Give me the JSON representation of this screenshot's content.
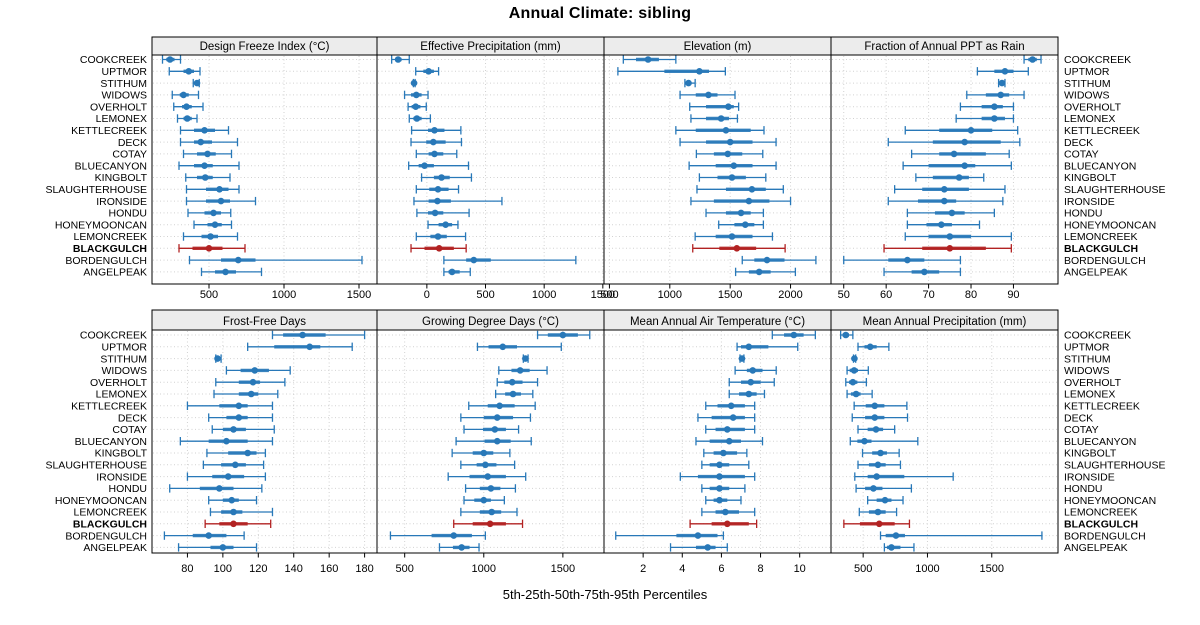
{
  "title": "Annual Climate: sibling",
  "axis_label": "5th-25th-50th-75th-95th Percentiles",
  "colors": {
    "series": "#2878B8",
    "highlight": "#B22222",
    "grid": "#D2D2D2",
    "strip_bg": "#ECECEC",
    "border": "#000000",
    "text": "#000000"
  },
  "sites": [
    "COOKCREEK",
    "UPTMOR",
    "STITHUM",
    "WIDOWS",
    "OVERHOLT",
    "LEMONEX",
    "KETTLECREEK",
    "DECK",
    "COTAY",
    "BLUECANYON",
    "KINGBOLT",
    "SLAUGHTERHOUSE",
    "IRONSIDE",
    "HONDU",
    "HONEYMOONCAN",
    "LEMONCREEK",
    "BLACKGULCH",
    "BORDENGULCH",
    "ANGELPEAK"
  ],
  "highlight_site": "BLACKGULCH",
  "chart_data": {
    "type": "percentile-dotplot",
    "percentiles": [
      "5th",
      "25th",
      "50th",
      "75th",
      "95th"
    ],
    "legend_position": "none",
    "grid": "dotted",
    "panels": [
      {
        "title": "Design Freeze Index (°C)",
        "row": 0,
        "col": 0,
        "xlim": [
          120,
          1620
        ],
        "ticks": [
          500,
          1000,
          1500
        ],
        "values": [
          [
            190,
            215,
            240,
            270,
            310
          ],
          [
            235,
            330,
            365,
            400,
            440
          ],
          [
            395,
            410,
            420,
            428,
            435
          ],
          [
            255,
            305,
            330,
            365,
            430
          ],
          [
            265,
            320,
            350,
            385,
            460
          ],
          [
            290,
            330,
            355,
            385,
            420
          ],
          [
            310,
            400,
            470,
            540,
            630
          ],
          [
            310,
            400,
            445,
            520,
            690
          ],
          [
            330,
            420,
            490,
            545,
            650
          ],
          [
            300,
            400,
            470,
            525,
            700
          ],
          [
            345,
            420,
            475,
            525,
            640
          ],
          [
            350,
            480,
            570,
            630,
            700
          ],
          [
            350,
            480,
            580,
            640,
            810
          ],
          [
            360,
            470,
            530,
            580,
            645
          ],
          [
            400,
            490,
            540,
            585,
            650
          ],
          [
            330,
            450,
            510,
            560,
            690
          ],
          [
            300,
            390,
            500,
            590,
            740
          ],
          [
            370,
            580,
            695,
            810,
            1520
          ],
          [
            450,
            540,
            610,
            680,
            850
          ]
        ]
      },
      {
        "title": "Effective Precipitation (mm)",
        "row": 0,
        "col": 1,
        "xlim": [
          -425,
          1510
        ],
        "ticks": [
          0,
          500,
          1000,
          1500
        ],
        "values": [
          [
            -300,
            -270,
            -245,
            -215,
            -150
          ],
          [
            -95,
            -30,
            15,
            60,
            100
          ],
          [
            -115,
            -112,
            -109,
            -106,
            -100
          ],
          [
            -190,
            -135,
            -90,
            -45,
            10
          ],
          [
            -160,
            -130,
            -95,
            -55,
            -5
          ],
          [
            -150,
            -115,
            -85,
            -45,
            30
          ],
          [
            -130,
            10,
            65,
            150,
            290
          ],
          [
            -135,
            -5,
            55,
            160,
            295
          ],
          [
            -90,
            15,
            65,
            140,
            255
          ],
          [
            -155,
            -70,
            -20,
            60,
            355
          ],
          [
            -45,
            60,
            125,
            195,
            380
          ],
          [
            -90,
            20,
            95,
            185,
            270
          ],
          [
            -110,
            15,
            90,
            205,
            640
          ],
          [
            -85,
            10,
            70,
            140,
            360
          ],
          [
            10,
            100,
            160,
            215,
            265
          ],
          [
            -90,
            30,
            95,
            170,
            330
          ],
          [
            -135,
            -20,
            105,
            230,
            335
          ],
          [
            145,
            335,
            400,
            545,
            1270
          ],
          [
            145,
            185,
            215,
            280,
            370
          ]
        ]
      },
      {
        "title": "Elevation (m)",
        "row": 0,
        "col": 2,
        "xlim": [
          455,
          2335
        ],
        "ticks": [
          500,
          1000,
          1500,
          2000
        ],
        "values": [
          [
            615,
            720,
            820,
            910,
            1050
          ],
          [
            570,
            955,
            1245,
            1325,
            1460
          ],
          [
            1125,
            1145,
            1155,
            1175,
            1210
          ],
          [
            1085,
            1215,
            1320,
            1395,
            1540
          ],
          [
            1165,
            1300,
            1485,
            1530,
            1570
          ],
          [
            1175,
            1300,
            1425,
            1490,
            1560
          ],
          [
            1050,
            1215,
            1465,
            1670,
            1780
          ],
          [
            1085,
            1300,
            1500,
            1685,
            1880
          ],
          [
            1220,
            1365,
            1480,
            1600,
            1770
          ],
          [
            1160,
            1380,
            1530,
            1685,
            1880
          ],
          [
            1245,
            1395,
            1515,
            1630,
            1795
          ],
          [
            1225,
            1465,
            1680,
            1795,
            1940
          ],
          [
            1175,
            1365,
            1655,
            1825,
            2000
          ],
          [
            1300,
            1465,
            1590,
            1670,
            1775
          ],
          [
            1405,
            1535,
            1625,
            1700,
            1775
          ],
          [
            1210,
            1380,
            1515,
            1685,
            1850
          ],
          [
            1190,
            1410,
            1555,
            1715,
            1955
          ],
          [
            1600,
            1700,
            1805,
            1950,
            2210
          ],
          [
            1545,
            1655,
            1740,
            1835,
            2040
          ]
        ]
      },
      {
        "title": "Fraction of Annual PPT as Rain",
        "row": 0,
        "col": 3,
        "xlim": [
          47,
          100.5
        ],
        "ticks": [
          50,
          60,
          70,
          80,
          90
        ],
        "values": [
          [
            92.5,
            93.5,
            94.5,
            95.5,
            96.5
          ],
          [
            81.5,
            85.5,
            88,
            90,
            93.5
          ],
          [
            86.5,
            87,
            87.3,
            87.7,
            88
          ],
          [
            79,
            83.5,
            87,
            89,
            92.5
          ],
          [
            77.5,
            82.5,
            85.5,
            87.5,
            90
          ],
          [
            76.5,
            82.5,
            85.5,
            88,
            90
          ],
          [
            64.5,
            72.5,
            80,
            85,
            91
          ],
          [
            60.5,
            71,
            78.5,
            87,
            91.5
          ],
          [
            66,
            72.5,
            76,
            83.5,
            89
          ],
          [
            64,
            70,
            78.5,
            81,
            89.5
          ],
          [
            67,
            71,
            77.2,
            79.5,
            83
          ],
          [
            62,
            68.5,
            73.7,
            79.5,
            88
          ],
          [
            60.5,
            67.5,
            73.7,
            76.5,
            87.5
          ],
          [
            65,
            71.5,
            75.5,
            78.5,
            85.5
          ],
          [
            65,
            69.5,
            73,
            75.5,
            82
          ],
          [
            64.5,
            70,
            75,
            80,
            89.5
          ],
          [
            59.5,
            68.5,
            75,
            83.5,
            89.5
          ],
          [
            50,
            60.5,
            65,
            69,
            77.5
          ],
          [
            59.5,
            66,
            69,
            72.5,
            77.5
          ]
        ]
      },
      {
        "title": "Frost-Free Days",
        "row": 1,
        "col": 0,
        "xlim": [
          60,
          187
        ],
        "ticks": [
          80,
          100,
          120,
          140,
          160,
          180
        ],
        "values": [
          [
            128,
            134,
            145,
            158,
            180
          ],
          [
            114,
            129,
            149,
            155,
            173
          ],
          [
            96,
            96.5,
            97,
            98,
            99
          ],
          [
            102,
            110,
            118,
            126,
            138
          ],
          [
            96,
            109,
            117,
            121,
            135
          ],
          [
            95,
            109,
            116,
            120,
            131
          ],
          [
            80,
            98,
            109,
            114,
            128
          ],
          [
            92,
            102,
            109,
            114,
            128
          ],
          [
            94,
            100,
            106,
            113,
            129
          ],
          [
            76,
            92,
            102,
            114,
            128
          ],
          [
            91,
            103,
            114,
            119,
            124
          ],
          [
            89,
            99,
            107,
            113,
            123
          ],
          [
            80,
            94,
            103,
            112,
            124
          ],
          [
            70,
            87,
            98,
            106,
            122
          ],
          [
            92,
            100,
            105,
            109,
            119
          ],
          [
            93,
            99,
            106,
            111,
            128
          ],
          [
            90,
            98,
            106,
            114,
            127
          ],
          [
            67,
            83,
            92,
            102,
            112
          ],
          [
            75,
            93,
            100,
            106,
            119
          ]
        ]
      },
      {
        "title": "Growing Degree Days (°C)",
        "row": 1,
        "col": 1,
        "xlim": [
          325,
          1760
        ],
        "ticks": [
          500,
          1000,
          1500
        ],
        "values": [
          [
            1340,
            1405,
            1500,
            1595,
            1670
          ],
          [
            960,
            1030,
            1120,
            1210,
            1490
          ],
          [
            1250,
            1258,
            1263,
            1270,
            1280
          ],
          [
            1095,
            1175,
            1230,
            1290,
            1400
          ],
          [
            1085,
            1130,
            1180,
            1245,
            1340
          ],
          [
            1075,
            1135,
            1185,
            1235,
            1310
          ],
          [
            905,
            1025,
            1100,
            1195,
            1325
          ],
          [
            855,
            1000,
            1085,
            1185,
            1295
          ],
          [
            875,
            995,
            1070,
            1140,
            1220
          ],
          [
            825,
            1005,
            1085,
            1170,
            1300
          ],
          [
            800,
            930,
            1000,
            1060,
            1165
          ],
          [
            855,
            955,
            1010,
            1080,
            1195
          ],
          [
            775,
            910,
            1025,
            1140,
            1265
          ],
          [
            885,
            975,
            1045,
            1105,
            1200
          ],
          [
            875,
            940,
            1000,
            1045,
            1130
          ],
          [
            855,
            975,
            1050,
            1110,
            1210
          ],
          [
            810,
            930,
            1040,
            1140,
            1245
          ],
          [
            410,
            670,
            810,
            925,
            1010
          ],
          [
            720,
            805,
            860,
            910,
            970
          ]
        ]
      },
      {
        "title": "Mean Annual Air Temperature (°C)",
        "row": 1,
        "col": 2,
        "xlim": [
          0,
          11.6
        ],
        "ticks": [
          2,
          4,
          6,
          8,
          10
        ],
        "values": [
          [
            8.6,
            9.2,
            9.7,
            10.2,
            10.8
          ],
          [
            6.8,
            7.0,
            7.4,
            8.4,
            9.9
          ],
          [
            6.95,
            7.0,
            7.05,
            7.1,
            7.15
          ],
          [
            6.7,
            7.3,
            7.6,
            8.1,
            8.8
          ],
          [
            6.4,
            7.0,
            7.5,
            8.0,
            8.7
          ],
          [
            6.4,
            6.9,
            7.4,
            7.8,
            8.2
          ],
          [
            5.2,
            5.8,
            6.5,
            7.2,
            7.7
          ],
          [
            4.8,
            5.5,
            6.6,
            7.2,
            7.7
          ],
          [
            5.2,
            5.7,
            6.3,
            7.2,
            7.7
          ],
          [
            4.7,
            5.4,
            6.4,
            7.0,
            8.1
          ],
          [
            5.1,
            5.6,
            6.1,
            6.8,
            7.3
          ],
          [
            5.0,
            5.4,
            5.9,
            6.4,
            7.4
          ],
          [
            3.9,
            4.8,
            5.9,
            7.2,
            7.7
          ],
          [
            5.0,
            5.4,
            5.9,
            6.4,
            7.2
          ],
          [
            5.2,
            5.6,
            5.9,
            6.3,
            7.0
          ],
          [
            5.0,
            5.7,
            6.2,
            6.9,
            7.7
          ],
          [
            4.4,
            5.5,
            6.3,
            7.4,
            7.8
          ],
          [
            0.6,
            3.7,
            4.8,
            5.8,
            6.1
          ],
          [
            3.4,
            4.7,
            5.3,
            5.7,
            6.3
          ]
        ]
      },
      {
        "title": "Mean Annual Precipitation (mm)",
        "row": 1,
        "col": 3,
        "xlim": [
          250,
          2015
        ],
        "ticks": [
          500,
          1000,
          1500
        ],
        "values": [
          [
            325,
            340,
            365,
            390,
            420
          ],
          [
            460,
            510,
            555,
            605,
            700
          ],
          [
            425,
            428,
            432,
            436,
            442
          ],
          [
            375,
            395,
            430,
            460,
            540
          ],
          [
            365,
            390,
            420,
            455,
            525
          ],
          [
            375,
            405,
            445,
            480,
            570
          ],
          [
            430,
            520,
            590,
            665,
            840
          ],
          [
            415,
            515,
            590,
            665,
            845
          ],
          [
            460,
            535,
            600,
            655,
            745
          ],
          [
            400,
            455,
            510,
            565,
            925
          ],
          [
            495,
            570,
            635,
            685,
            780
          ],
          [
            460,
            545,
            615,
            675,
            790
          ],
          [
            435,
            535,
            605,
            820,
            1200
          ],
          [
            445,
            515,
            580,
            650,
            875
          ],
          [
            535,
            605,
            670,
            720,
            810
          ],
          [
            470,
            545,
            615,
            675,
            760
          ],
          [
            350,
            475,
            625,
            745,
            860
          ],
          [
            635,
            675,
            755,
            825,
            1890
          ],
          [
            665,
            685,
            720,
            790,
            895
          ]
        ]
      }
    ]
  }
}
